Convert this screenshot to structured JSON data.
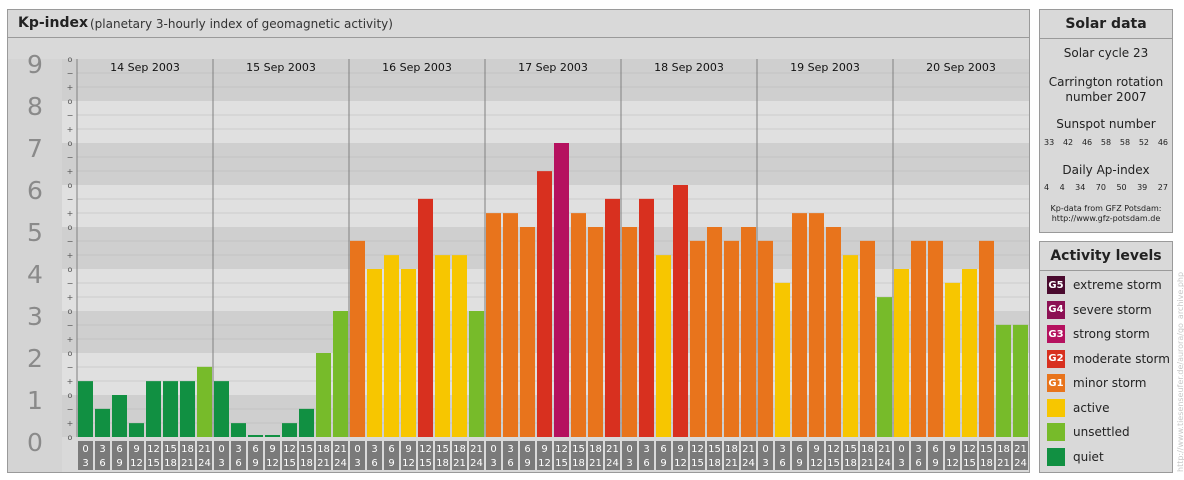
{
  "header": {
    "title": "Kp-index",
    "subtitle": "(planetary 3-hourly index of geomagnetic activity)"
  },
  "chart_data": {
    "type": "bar",
    "title": "Kp-index",
    "subtitle": "(planetary 3-hourly index of geomagnetic activity)",
    "ylim": [
      0,
      9
    ],
    "y_ticks": [
      "0",
      "1",
      "2",
      "3",
      "4",
      "5",
      "6",
      "7",
      "8",
      "9"
    ],
    "minor_tick_labels": [
      "+",
      "−",
      "o"
    ],
    "days": [
      "14 Sep 2003",
      "15 Sep 2003",
      "16 Sep 2003",
      "17 Sep 2003",
      "18 Sep 2003",
      "19 Sep 2003",
      "20 Sep 2003"
    ],
    "interval_start": [
      "0",
      "3",
      "6",
      "9",
      "12",
      "15",
      "18",
      "21"
    ],
    "interval_end": [
      "3",
      "6",
      "9",
      "12",
      "15",
      "18",
      "21",
      "24"
    ],
    "values": [
      [
        1.33,
        0.67,
        1.0,
        0.33,
        1.33,
        1.33,
        1.33,
        1.67
      ],
      [
        1.33,
        0.33,
        0.0,
        0.0,
        0.33,
        0.67,
        2.0,
        3.0
      ],
      [
        4.67,
        4.0,
        4.33,
        4.0,
        5.67,
        4.33,
        4.33,
        3.0
      ],
      [
        5.33,
        5.33,
        5.0,
        6.33,
        7.0,
        5.33,
        5.0,
        5.67
      ],
      [
        5.0,
        5.67,
        4.33,
        6.0,
        4.67,
        5.0,
        4.67,
        5.0
      ],
      [
        4.67,
        3.67,
        5.33,
        5.33,
        5.0,
        4.33,
        4.67,
        3.33
      ],
      [
        4.0,
        4.67,
        4.67,
        3.67,
        4.0,
        4.67,
        2.67,
        2.67
      ]
    ],
    "grid": true
  },
  "solar": {
    "header": "Solar data",
    "cycle": "Solar cycle 23",
    "carrington_line1": "Carrington rotation",
    "carrington_line2": "number 2007",
    "sunspot_label": "Sunspot number",
    "sunspot_values": [
      "33",
      "42",
      "46",
      "58",
      "58",
      "52",
      "46"
    ],
    "ap_label": "Daily Ap-index",
    "ap_values": [
      "4",
      "4",
      "34",
      "70",
      "50",
      "39",
      "27"
    ],
    "source_line1": "Kp-data from GFZ Potsdam:",
    "source_line2": "http://www.gfz-potsdam.de"
  },
  "activity": {
    "header": "Activity levels",
    "levels": [
      {
        "code": "G5",
        "label": "extreme storm",
        "color": "#4a0a2e"
      },
      {
        "code": "G4",
        "label": "severe storm",
        "color": "#8c1054"
      },
      {
        "code": "G3",
        "label": "strong storm",
        "color": "#b5115f"
      },
      {
        "code": "G2",
        "label": "moderate storm",
        "color": "#d8301f"
      },
      {
        "code": "G1",
        "label": "minor storm",
        "color": "#e8741c"
      },
      {
        "code": "",
        "label": "active",
        "color": "#f7c600"
      },
      {
        "code": "",
        "label": "unsettled",
        "color": "#77bb2a"
      },
      {
        "code": "",
        "label": "quiet",
        "color": "#119042"
      }
    ]
  },
  "watermark": "http://www.tiesenseufer.de/aurora/go_archive.php"
}
